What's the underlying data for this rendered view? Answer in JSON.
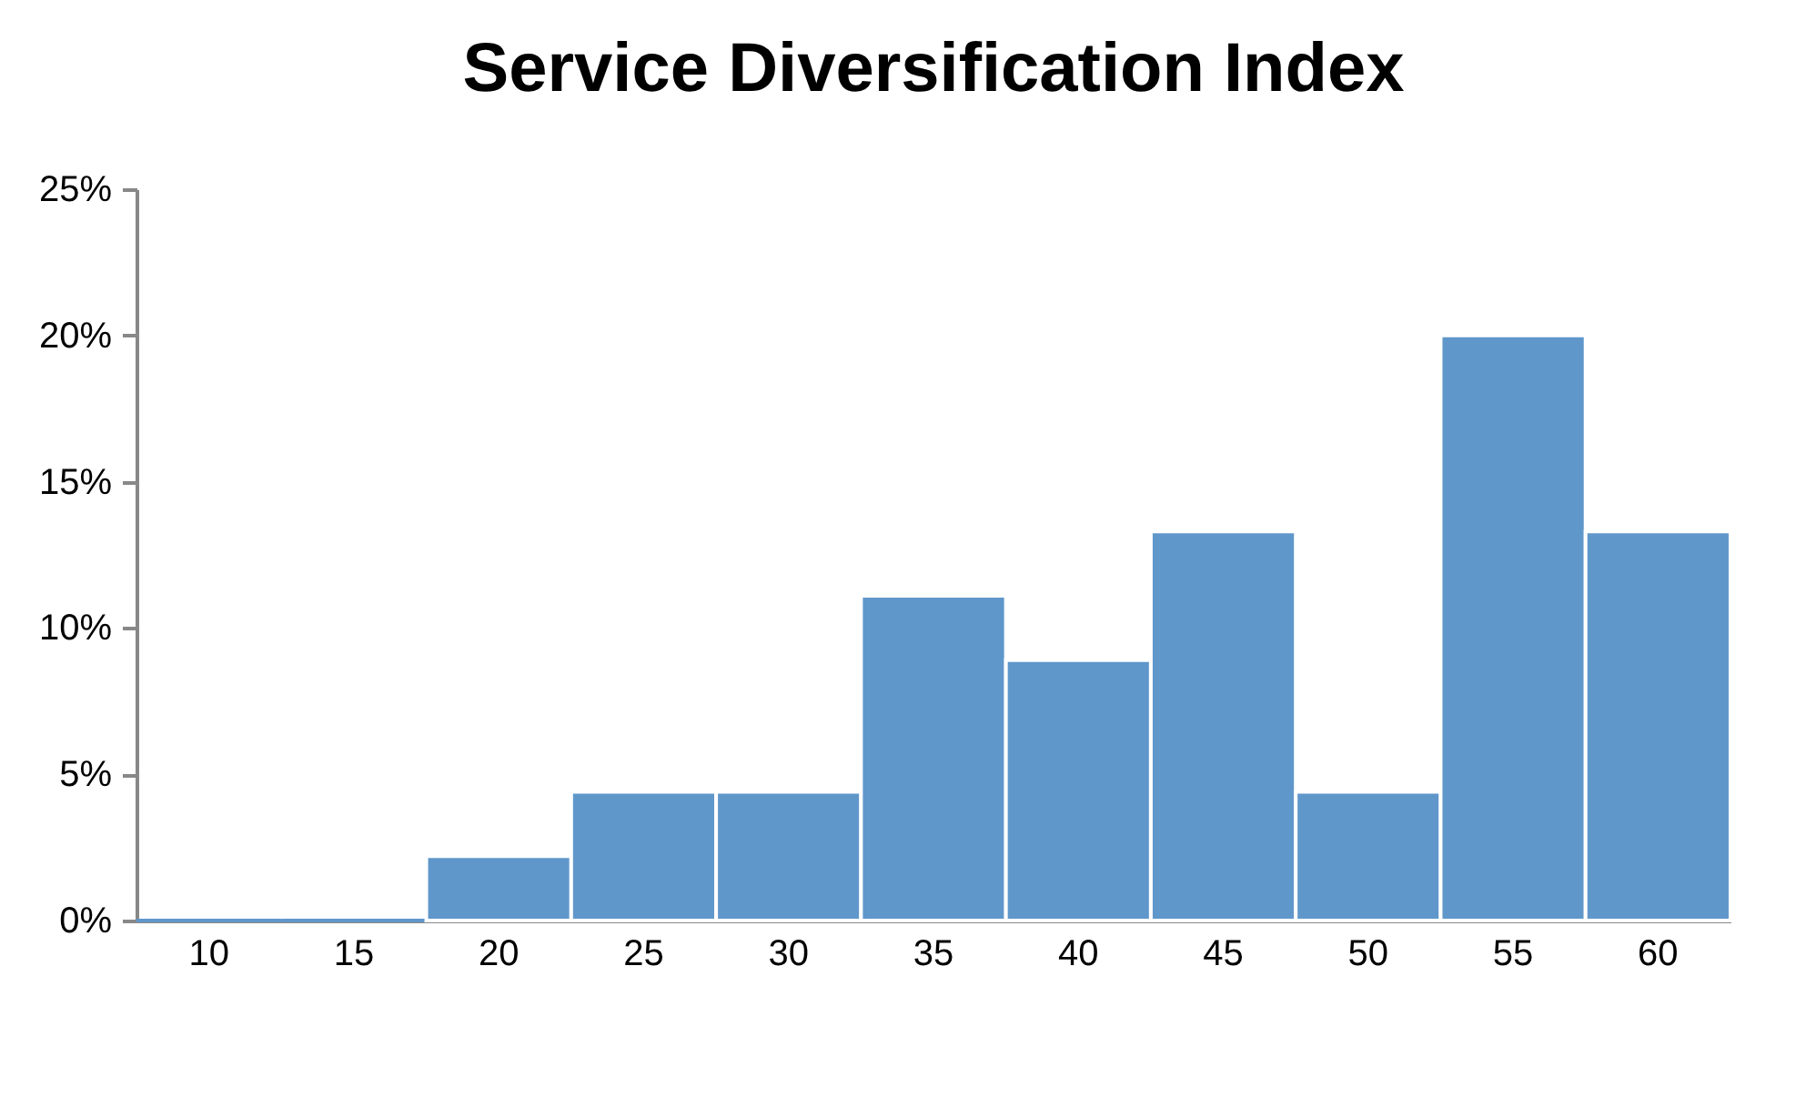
{
  "chart_data": {
    "type": "bar",
    "title": "Service Diversification Index",
    "categories": [
      "10",
      "15",
      "20",
      "25",
      "30",
      "35",
      "40",
      "45",
      "50",
      "55",
      "60"
    ],
    "values": [
      0,
      0,
      2.2,
      4.4,
      4.4,
      11.1,
      8.9,
      13.3,
      4.4,
      20,
      13.3
    ],
    "color": "#6097cb",
    "ylim": [
      0,
      25
    ],
    "yticks": [
      {
        "value": 0,
        "label": "0%"
      },
      {
        "value": 5,
        "label": "5%"
      },
      {
        "value": 10,
        "label": "10%"
      },
      {
        "value": 15,
        "label": "15%"
      },
      {
        "value": 20,
        "label": "20%"
      },
      {
        "value": 25,
        "label": "25%"
      }
    ]
  }
}
